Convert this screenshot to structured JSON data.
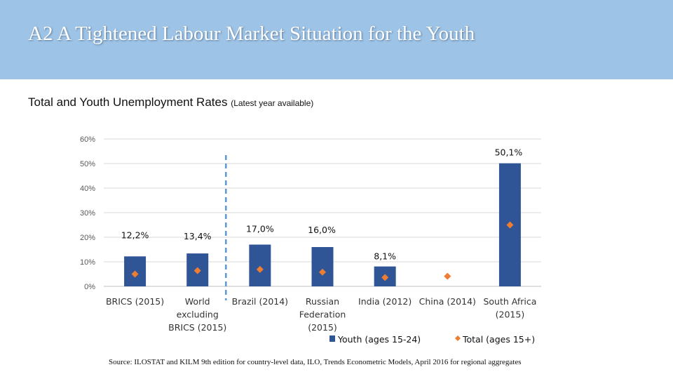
{
  "header": {
    "title": "A2  A Tightened Labour Market Situation for the Youth",
    "subtitle_main": "Total and Youth Unemployment Rates",
    "subtitle_note": "(Latest year available)"
  },
  "colors": {
    "header_bg": "#9dc3e6",
    "youth_bar": "#2f5597",
    "total_marker": "#ed7d31",
    "divider": "#5b9bd5",
    "grid": "#d9d9d9"
  },
  "chart_data": {
    "type": "bar",
    "title": "Total and Youth Unemployment Rates (Latest year available)",
    "xlabel": "",
    "ylabel": "",
    "ylim": [
      0,
      60
    ],
    "yticks": [
      0,
      10,
      20,
      30,
      40,
      50,
      60
    ],
    "ytick_labels": [
      "0%",
      "10%",
      "20%",
      "30%",
      "40%",
      "50%",
      "60%"
    ],
    "grid": true,
    "legend_position": "bottom-right",
    "categories": [
      [
        "BRICS (2015)"
      ],
      [
        "World",
        "excluding",
        "BRICS (2015)"
      ],
      [
        "Brazil (2014)"
      ],
      [
        "Russian",
        "Federation",
        "(2015)"
      ],
      [
        "India (2012)"
      ],
      [
        "China (2014)"
      ],
      [
        "South Africa",
        "(2015)"
      ]
    ],
    "series": [
      {
        "name": "Youth (ages 15-24)",
        "kind": "bar",
        "values": [
          12.2,
          13.4,
          17.0,
          16.0,
          8.1,
          null,
          50.1
        ],
        "labels": [
          "12,2%",
          "13,4%",
          "17,0%",
          "16,0%",
          "8,1%",
          "",
          "50,1%"
        ]
      },
      {
        "name": "Total (ages 15+)",
        "kind": "marker",
        "values": [
          5.0,
          6.4,
          6.9,
          5.8,
          3.6,
          4.1,
          25.0
        ]
      }
    ]
  },
  "source": "Source: ILOSTAT and KILM 9th edition for country-level data, ILO, Trends Econometric Models, April 2016 for regional aggregates"
}
